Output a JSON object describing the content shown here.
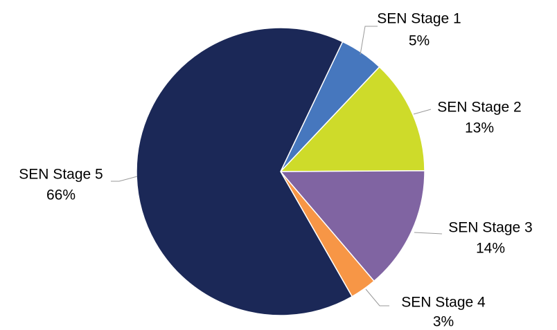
{
  "chart_data": {
    "type": "pie",
    "categories": [
      "SEN Stage 1",
      "SEN Stage 2",
      "SEN Stage 3",
      "SEN Stage 4",
      "SEN Stage 5"
    ],
    "values": [
      5,
      13,
      14,
      3,
      66
    ],
    "value_labels": [
      "5%",
      "13%",
      "14%",
      "3%",
      "66%"
    ],
    "colors": [
      "#4677be",
      "#cedb2a",
      "#8064a2",
      "#f79646",
      "#1b2857"
    ]
  }
}
